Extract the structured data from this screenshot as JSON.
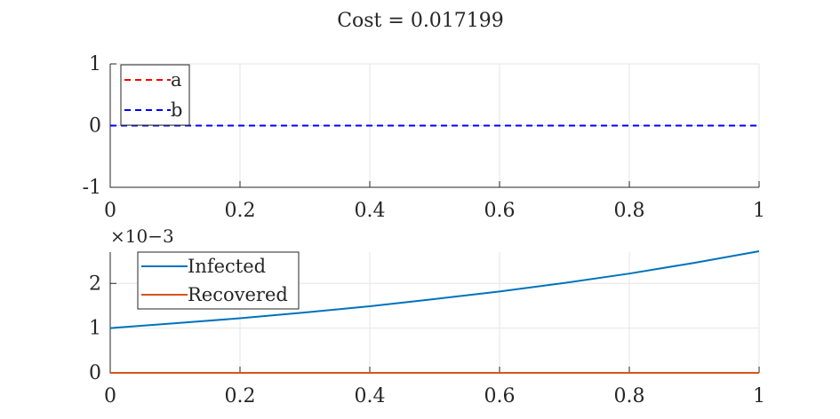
{
  "chart_data": [
    {
      "type": "line",
      "title": "Cost = 0.017199",
      "xlim": [
        0,
        1
      ],
      "ylim": [
        -1,
        1
      ],
      "xticks": [
        "0",
        "0.2",
        "0.4",
        "0.6",
        "0.8",
        "1"
      ],
      "yticks": [
        "-1",
        "0",
        "1"
      ],
      "grid": true,
      "legend_placement": "top-left",
      "series": [
        {
          "name": "a",
          "color": "#ff0000",
          "style": "dashed",
          "x": [
            0,
            1
          ],
          "y": [
            0,
            0
          ]
        },
        {
          "name": "b",
          "color": "#0000ff",
          "style": "dashed",
          "x": [
            0,
            1
          ],
          "y": [
            0,
            0
          ]
        }
      ]
    },
    {
      "type": "line",
      "xlim": [
        0,
        1
      ],
      "ylim": [
        0,
        0.0027
      ],
      "y_exponent_label": "×10−3",
      "xticks": [
        "0",
        "0.2",
        "0.4",
        "0.6",
        "0.8",
        "1"
      ],
      "yticks": [
        "0",
        "1",
        "2"
      ],
      "grid": true,
      "legend_placement": "top-left",
      "series": [
        {
          "name": "Infected",
          "color": "#0072bd",
          "style": "solid",
          "x": [
            0,
            0.1,
            0.2,
            0.3,
            0.4,
            0.5,
            0.6,
            0.7,
            0.8,
            0.9,
            1.0
          ],
          "y": [
            0.001,
            0.00111,
            0.00122,
            0.00135,
            0.00149,
            0.00165,
            0.00182,
            0.00201,
            0.00222,
            0.00246,
            0.00272
          ]
        },
        {
          "name": "Recovered",
          "color": "#d95319",
          "style": "solid",
          "x": [
            0,
            1
          ],
          "y": [
            0,
            0
          ]
        }
      ]
    }
  ]
}
